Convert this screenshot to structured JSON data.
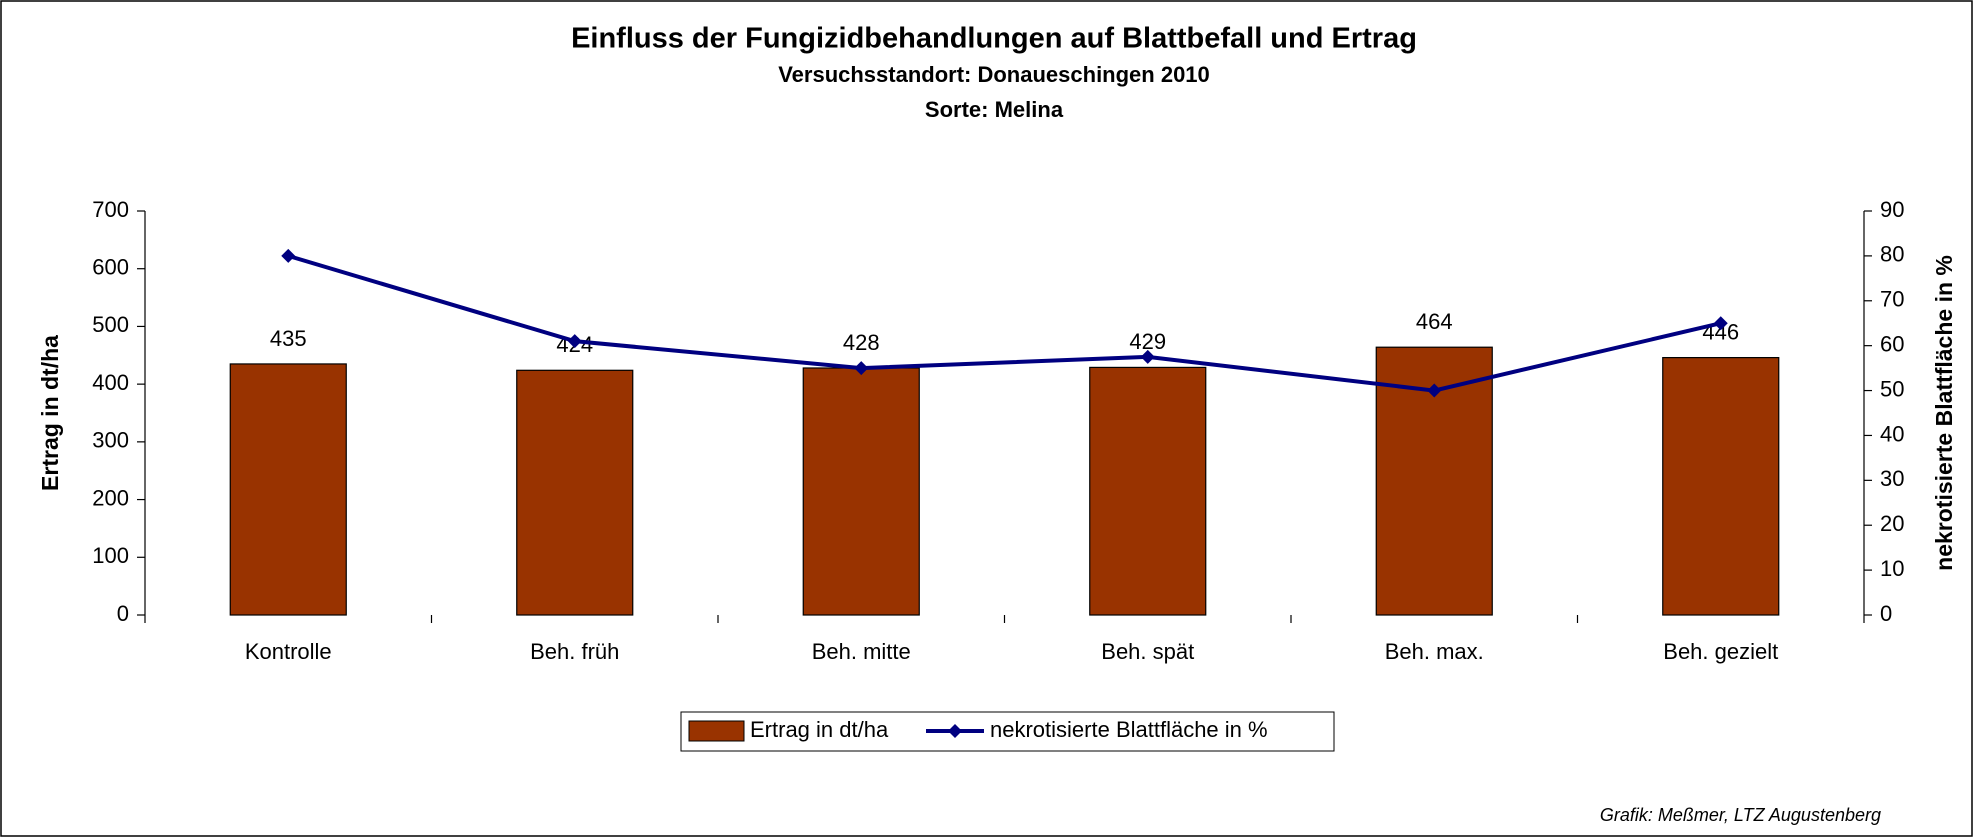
{
  "chart_data": {
    "type": "bar",
    "title": "Einfluss der Fungizidbehandlungen auf Blattbefall und Ertrag",
    "subtitle": "Versuchsstandort: Donaueschingen 2010",
    "subtitle2": "Sorte: Melina",
    "ylabel": "Ertrag in dt/ha",
    "y2label": "nekrotisierte Blattfläche in %",
    "credit": "Grafik: Meßmer, LTZ Augustenberg",
    "categories": [
      "Kontrolle",
      "Beh. früh",
      "Beh. mitte",
      "Beh. spät",
      "Beh. max.",
      "Beh. gezielt"
    ],
    "series": [
      {
        "name": "Ertrag in dt/ha",
        "type": "bar",
        "color": "#993300",
        "values": [
          435,
          424,
          428,
          429,
          464,
          446
        ]
      },
      {
        "name": "nekrotisierte Blattfläche in %",
        "type": "line",
        "axis": "y2",
        "color": "#000080",
        "values": [
          80,
          61,
          55,
          57.5,
          50,
          65
        ]
      }
    ],
    "ylim": [
      0,
      700
    ],
    "yticks": [
      0,
      100,
      200,
      300,
      400,
      500,
      600,
      700
    ],
    "y2lim": [
      0,
      90
    ],
    "y2ticks": [
      0,
      10,
      20,
      30,
      40,
      50,
      60,
      70,
      80,
      90
    ],
    "legend": "bottom",
    "data_labels": true
  }
}
